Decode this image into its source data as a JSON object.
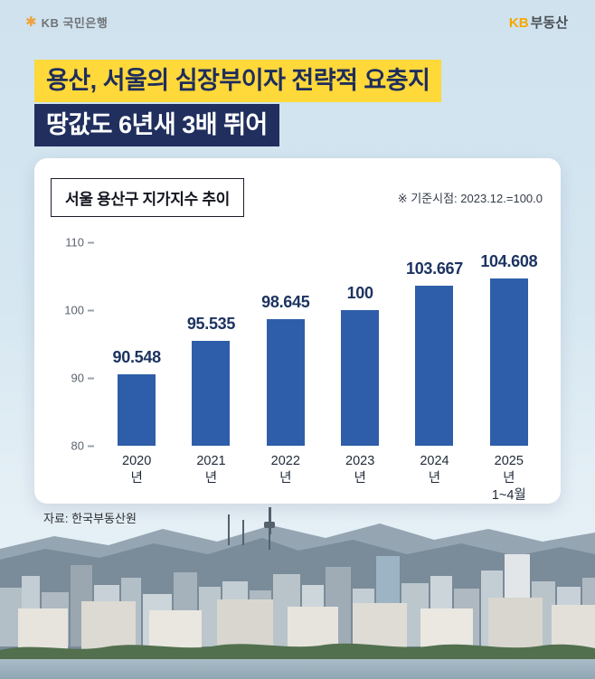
{
  "brand": {
    "left_star_icon": "✱",
    "left_name": "KB 국민은행",
    "right_kb": "KB",
    "right_name": "부동산"
  },
  "headline": {
    "line1": "용산, 서울의 심장부이자 전략적 요충지",
    "line2": "땅값도 6년새 3배 뛰어"
  },
  "card": {
    "chart_title": "서울 용산구 지가지수 추이",
    "baseline_note": "※ 기준시점: 2023.12.=100.0"
  },
  "source": "자료: 한국부동산원",
  "chart_data": {
    "type": "bar",
    "title": "서울 용산구 지가지수 추이",
    "note": "※ 기준시점: 2023.12.=100.0",
    "categories": [
      "2020년",
      "2021년",
      "2022년",
      "2023년",
      "2024년",
      "2025년\n1~4월"
    ],
    "values": [
      90.548,
      95.535,
      98.645,
      100,
      103.667,
      104.608
    ],
    "value_labels": [
      "90.548",
      "95.535",
      "98.645",
      "100",
      "103.667",
      "104.608"
    ],
    "xlabel": "",
    "ylabel": "",
    "ylim": [
      80,
      112
    ],
    "yticks": [
      110,
      100,
      90,
      80
    ],
    "grid": false,
    "legend": "none",
    "bar_color": "#2e5ea9"
  },
  "colors": {
    "highlight_yellow": "#ffd83a",
    "navy": "#202f5e",
    "bar_blue": "#2e5ea9",
    "value_label_navy": "#1d3461"
  }
}
